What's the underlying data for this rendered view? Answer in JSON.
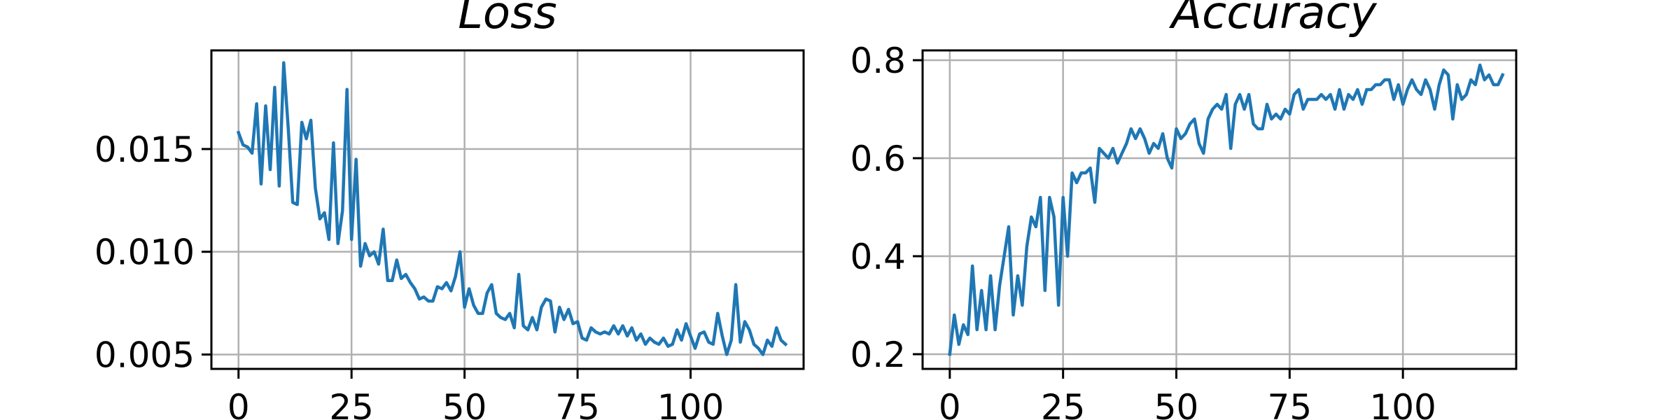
{
  "colors": {
    "line": "#1f77b4",
    "grid": "#b0b0b0",
    "axes": "#000000"
  },
  "chart_data": [
    {
      "type": "line",
      "title": "Loss",
      "xlabel": "",
      "ylabel": "",
      "xlim": [
        -6,
        125
      ],
      "ylim": [
        0.0043,
        0.0198
      ],
      "xticks": [
        0,
        25,
        50,
        75,
        100
      ],
      "xtick_labels": [
        "0",
        "25",
        "50",
        "75",
        "100"
      ],
      "yticks": [
        0.005,
        0.01,
        0.015
      ],
      "ytick_labels": [
        "0.005",
        "0.010",
        "0.015"
      ],
      "grid": true,
      "series": [
        {
          "values": [
            0.0158,
            0.0152,
            0.0151,
            0.0148,
            0.0172,
            0.0133,
            0.0171,
            0.014,
            0.018,
            0.0132,
            0.0192,
            0.016,
            0.0124,
            0.0123,
            0.0163,
            0.0155,
            0.0164,
            0.0131,
            0.0116,
            0.0119,
            0.0106,
            0.0153,
            0.0104,
            0.012,
            0.0179,
            0.0106,
            0.0145,
            0.0093,
            0.0104,
            0.0098,
            0.01,
            0.0094,
            0.0111,
            0.0086,
            0.0086,
            0.0096,
            0.0087,
            0.0089,
            0.0085,
            0.0082,
            0.0077,
            0.0078,
            0.0076,
            0.0076,
            0.0083,
            0.0082,
            0.0085,
            0.0081,
            0.0088,
            0.01,
            0.0073,
            0.0082,
            0.0074,
            0.007,
            0.007,
            0.008,
            0.0084,
            0.007,
            0.0068,
            0.0067,
            0.007,
            0.0063,
            0.0089,
            0.0064,
            0.0062,
            0.0068,
            0.0062,
            0.0073,
            0.0077,
            0.0076,
            0.0061,
            0.0073,
            0.0067,
            0.0072,
            0.0065,
            0.0066,
            0.0058,
            0.0057,
            0.0063,
            0.0061,
            0.006,
            0.0061,
            0.006,
            0.0064,
            0.006,
            0.0064,
            0.0059,
            0.0063,
            0.0057,
            0.006,
            0.0055,
            0.0058,
            0.0056,
            0.0055,
            0.0058,
            0.0054,
            0.0055,
            0.0062,
            0.0057,
            0.0065,
            0.0059,
            0.0053,
            0.006,
            0.0061,
            0.0056,
            0.0055,
            0.007,
            0.0059,
            0.005,
            0.0057,
            0.0084,
            0.0056,
            0.0066,
            0.0062,
            0.0055,
            0.0053,
            0.005,
            0.0057,
            0.0054,
            0.0063,
            0.0057,
            0.0055
          ]
        }
      ]
    },
    {
      "type": "line",
      "title": "Accuracy",
      "xlabel": "",
      "ylabel": "",
      "xlim": [
        -6,
        125
      ],
      "ylim": [
        0.17,
        0.82
      ],
      "xticks": [
        0,
        25,
        50,
        75,
        100
      ],
      "xtick_labels": [
        "0",
        "25",
        "50",
        "75",
        "100"
      ],
      "yticks": [
        0.2,
        0.4,
        0.6,
        0.8
      ],
      "ytick_labels": [
        "0.2",
        "0.4",
        "0.6",
        "0.8"
      ],
      "grid": true,
      "series": [
        {
          "values": [
            0.2,
            0.28,
            0.22,
            0.26,
            0.24,
            0.38,
            0.25,
            0.33,
            0.25,
            0.36,
            0.25,
            0.34,
            0.4,
            0.46,
            0.28,
            0.36,
            0.3,
            0.42,
            0.48,
            0.46,
            0.52,
            0.33,
            0.52,
            0.48,
            0.3,
            0.52,
            0.4,
            0.57,
            0.55,
            0.57,
            0.57,
            0.58,
            0.51,
            0.62,
            0.61,
            0.6,
            0.62,
            0.59,
            0.61,
            0.63,
            0.66,
            0.64,
            0.66,
            0.64,
            0.61,
            0.63,
            0.62,
            0.65,
            0.6,
            0.58,
            0.66,
            0.64,
            0.65,
            0.67,
            0.68,
            0.63,
            0.61,
            0.68,
            0.7,
            0.71,
            0.7,
            0.73,
            0.62,
            0.71,
            0.73,
            0.7,
            0.73,
            0.67,
            0.66,
            0.66,
            0.71,
            0.68,
            0.69,
            0.68,
            0.7,
            0.69,
            0.73,
            0.74,
            0.7,
            0.72,
            0.72,
            0.72,
            0.73,
            0.72,
            0.73,
            0.7,
            0.74,
            0.7,
            0.73,
            0.72,
            0.74,
            0.71,
            0.74,
            0.74,
            0.75,
            0.75,
            0.76,
            0.76,
            0.72,
            0.75,
            0.71,
            0.74,
            0.76,
            0.74,
            0.73,
            0.76,
            0.74,
            0.7,
            0.75,
            0.78,
            0.77,
            0.68,
            0.75,
            0.72,
            0.73,
            0.76,
            0.75,
            0.79,
            0.76,
            0.77,
            0.75,
            0.75,
            0.77
          ]
        }
      ]
    }
  ]
}
